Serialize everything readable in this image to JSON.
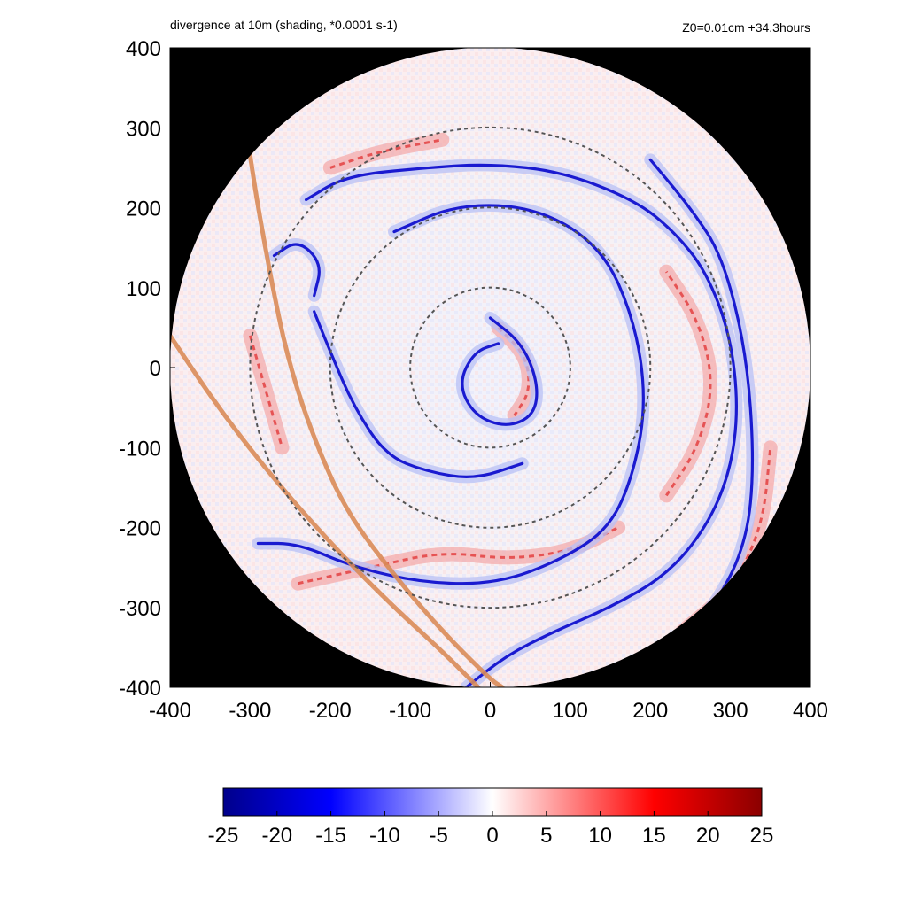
{
  "chart_data": {
    "type": "heatmap",
    "title": "divergence at 10m (shading, *0.0001 s-1)",
    "subtitle": "Z0=0.01cm  +34.3hours",
    "xlim": [
      -400,
      400
    ],
    "ylim": [
      -400,
      400
    ],
    "x_ticks": [
      "-400",
      "-300",
      "-200",
      "-100",
      "0",
      "100",
      "200",
      "300",
      "400"
    ],
    "y_ticks": [
      "400",
      "300",
      "200",
      "100",
      "0",
      "-100",
      "-200",
      "-300",
      "-400"
    ],
    "reference_circles_radii": [
      100,
      200,
      300
    ],
    "domain_radius": 400,
    "colorbar": {
      "range": [
        -25,
        25
      ],
      "ticks": [
        "-25",
        "-20",
        "-15",
        "-10",
        "-5",
        "0",
        "5",
        "10",
        "15",
        "20",
        "25"
      ],
      "colors": [
        "#00008b",
        "#0000ff",
        "#ffffff",
        "#ff0000",
        "#8b0000"
      ]
    },
    "coastlines": [
      [
        [
          -300,
          265
        ],
        [
          -290,
          200
        ],
        [
          -270,
          90
        ],
        [
          -250,
          0
        ],
        [
          -220,
          -90
        ],
        [
          -180,
          -180
        ],
        [
          -120,
          -260
        ],
        [
          -60,
          -330
        ],
        [
          0,
          -390
        ],
        [
          15,
          -400
        ]
      ],
      [
        [
          -400,
          40
        ],
        [
          -340,
          -50
        ],
        [
          -270,
          -140
        ],
        [
          -190,
          -230
        ],
        [
          -120,
          -300
        ],
        [
          -60,
          -355
        ],
        [
          -15,
          -400
        ]
      ]
    ],
    "convergence_bands": [
      [
        [
          0,
          62
        ],
        [
          40,
          30
        ],
        [
          60,
          -20
        ],
        [
          55,
          -60
        ],
        [
          20,
          -75
        ],
        [
          -20,
          -60
        ],
        [
          -40,
          -20
        ],
        [
          -20,
          20
        ],
        [
          10,
          30
        ]
      ],
      [
        [
          -120,
          170
        ],
        [
          -40,
          205
        ],
        [
          60,
          200
        ],
        [
          140,
          150
        ],
        [
          180,
          60
        ],
        [
          195,
          -40
        ],
        [
          180,
          -130
        ],
        [
          150,
          -200
        ],
        [
          90,
          -240
        ],
        [
          10,
          -270
        ],
        [
          -80,
          -270
        ],
        [
          -170,
          -250
        ],
        [
          -240,
          -220
        ],
        [
          -290,
          -220
        ]
      ],
      [
        [
          -230,
          210
        ],
        [
          -180,
          240
        ],
        [
          -80,
          250
        ],
        [
          0,
          255
        ],
        [
          90,
          245
        ],
        [
          180,
          210
        ],
        [
          230,
          170
        ],
        [
          270,
          120
        ],
        [
          300,
          40
        ],
        [
          310,
          -50
        ],
        [
          300,
          -130
        ],
        [
          270,
          -200
        ],
        [
          220,
          -260
        ],
        [
          150,
          -300
        ],
        [
          80,
          -330
        ],
        [
          20,
          -360
        ],
        [
          -30,
          -400
        ]
      ],
      [
        [
          -220,
          70
        ],
        [
          -200,
          20
        ],
        [
          -170,
          -50
        ],
        [
          -130,
          -110
        ],
        [
          -80,
          -130
        ],
        [
          -20,
          -140
        ],
        [
          40,
          -120
        ]
      ],
      [
        [
          -270,
          140
        ],
        [
          -240,
          160
        ],
        [
          -210,
          130
        ],
        [
          -220,
          90
        ]
      ],
      [
        [
          200,
          260
        ],
        [
          250,
          200
        ],
        [
          290,
          140
        ],
        [
          320,
          20
        ],
        [
          330,
          -120
        ],
        [
          320,
          -220
        ],
        [
          280,
          -300
        ],
        [
          220,
          -360
        ]
      ]
    ],
    "divergence_bands": [
      [
        [
          10,
          50
        ],
        [
          45,
          15
        ],
        [
          50,
          -30
        ],
        [
          30,
          -60
        ]
      ],
      [
        [
          -240,
          -270
        ],
        [
          -150,
          -250
        ],
        [
          -60,
          -230
        ],
        [
          20,
          -240
        ],
        [
          100,
          -230
        ],
        [
          160,
          -200
        ]
      ],
      [
        [
          220,
          -160
        ],
        [
          260,
          -100
        ],
        [
          280,
          -20
        ],
        [
          260,
          60
        ],
        [
          220,
          120
        ]
      ],
      [
        [
          240,
          -330
        ],
        [
          300,
          -280
        ],
        [
          340,
          -200
        ],
        [
          350,
          -100
        ]
      ],
      [
        [
          -200,
          250
        ],
        [
          -140,
          270
        ],
        [
          -60,
          285
        ]
      ],
      [
        [
          -300,
          40
        ],
        [
          -280,
          -30
        ],
        [
          -260,
          -100
        ]
      ]
    ]
  }
}
